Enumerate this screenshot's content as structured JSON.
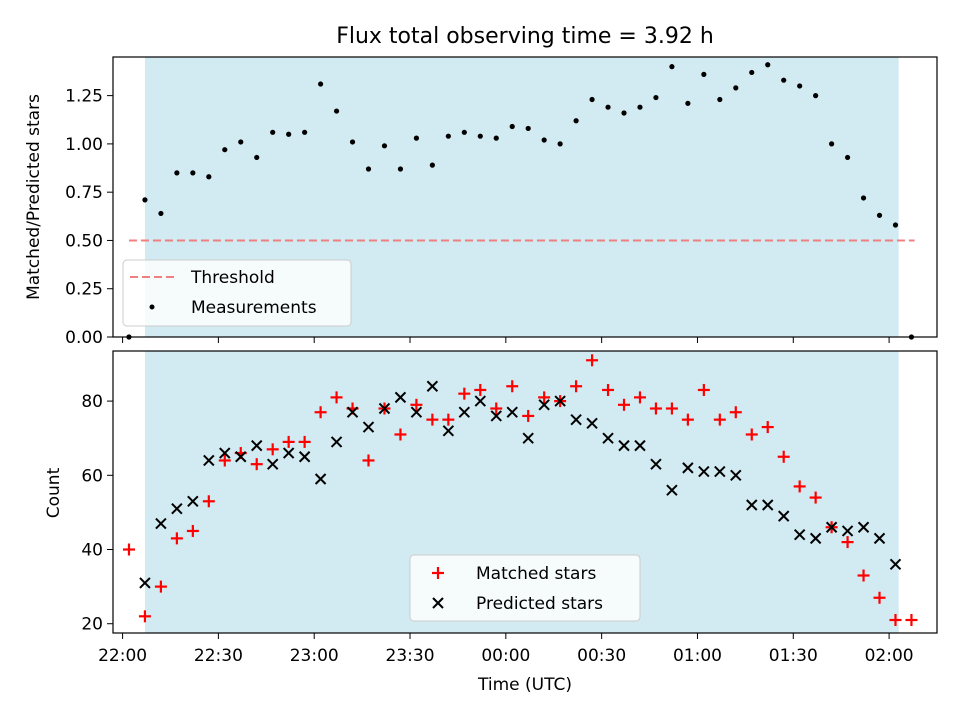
{
  "title": "Flux total observing time = 3.92 h",
  "colors": {
    "observing_band": "#add8e6",
    "threshold": "#f08080",
    "measurements": "#000000",
    "matched": "#ff0000",
    "predicted": "#000000"
  },
  "chart_data": [
    {
      "type": "scatter",
      "panel": "top",
      "ylabel": "Matched/Predicted stars",
      "ylim": [
        0,
        1.45
      ],
      "yticks": [
        "0.00",
        "0.25",
        "0.50",
        "0.75",
        "1.00",
        "1.25"
      ],
      "xlim": [
        "21:57",
        "02:15"
      ],
      "observing_window": [
        "22:07",
        "02:03"
      ],
      "threshold": {
        "label": "Threshold",
        "value": 0.5,
        "x_range": [
          "22:02",
          "02:08"
        ],
        "style": "dashed"
      },
      "legend": {
        "position": "lower-left",
        "entries": [
          "Threshold",
          "Measurements"
        ]
      },
      "series": [
        {
          "name": "Measurements",
          "marker": "dot",
          "x": [
            "22:02",
            "22:07",
            "22:12",
            "22:17",
            "22:22",
            "22:27",
            "22:32",
            "22:37",
            "22:42",
            "22:47",
            "22:52",
            "22:57",
            "23:02",
            "23:07",
            "23:12",
            "23:17",
            "23:22",
            "23:27",
            "23:32",
            "23:37",
            "23:42",
            "23:47",
            "23:52",
            "23:57",
            "00:02",
            "00:07",
            "00:12",
            "00:17",
            "00:22",
            "00:27",
            "00:32",
            "00:37",
            "00:42",
            "00:47",
            "00:52",
            "00:57",
            "01:02",
            "01:07",
            "01:12",
            "01:17",
            "01:22",
            "01:27",
            "01:32",
            "01:37",
            "01:42",
            "01:47",
            "01:52",
            "01:57",
            "02:02",
            "02:07"
          ],
          "y": [
            0.0,
            0.71,
            0.64,
            0.85,
            0.85,
            0.83,
            0.97,
            1.01,
            0.93,
            1.06,
            1.05,
            1.06,
            1.31,
            1.17,
            1.01,
            0.87,
            0.99,
            0.87,
            1.03,
            0.89,
            1.04,
            1.06,
            1.04,
            1.03,
            1.09,
            1.08,
            1.02,
            1.0,
            1.12,
            1.23,
            1.19,
            1.16,
            1.19,
            1.24,
            1.4,
            1.21,
            1.36,
            1.23,
            1.29,
            1.37,
            1.41,
            1.33,
            1.3,
            1.25,
            1.0,
            0.93,
            0.72,
            0.63,
            0.58,
            0.0
          ]
        }
      ]
    },
    {
      "type": "scatter",
      "panel": "bottom",
      "xlabel": "Time (UTC)",
      "ylabel": "Count",
      "ylim": [
        17.5,
        93.5
      ],
      "yticks": [
        "20",
        "40",
        "60",
        "80"
      ],
      "xlim": [
        "21:57",
        "02:15"
      ],
      "xticks": [
        "22:00",
        "22:30",
        "23:00",
        "23:30",
        "00:00",
        "00:30",
        "01:00",
        "01:30",
        "02:00"
      ],
      "observing_window": [
        "22:07",
        "02:03"
      ],
      "legend": {
        "position": "lower-center",
        "entries": [
          "Matched stars",
          "Predicted stars"
        ]
      },
      "series": [
        {
          "name": "Matched stars",
          "marker": "plus",
          "x": [
            "22:02",
            "22:07",
            "22:12",
            "22:17",
            "22:22",
            "22:27",
            "22:32",
            "22:37",
            "22:42",
            "22:47",
            "22:52",
            "22:57",
            "23:02",
            "23:07",
            "23:12",
            "23:17",
            "23:22",
            "23:27",
            "23:32",
            "23:37",
            "23:42",
            "23:47",
            "23:52",
            "23:57",
            "00:02",
            "00:07",
            "00:12",
            "00:17",
            "00:22",
            "00:27",
            "00:32",
            "00:37",
            "00:42",
            "00:47",
            "00:52",
            "00:57",
            "01:02",
            "01:07",
            "01:12",
            "01:17",
            "01:22",
            "01:27",
            "01:32",
            "01:37",
            "01:42",
            "01:47",
            "01:52",
            "01:57",
            "02:02",
            "02:07"
          ],
          "y": [
            40,
            22,
            30,
            43,
            45,
            53,
            64,
            66,
            63,
            67,
            69,
            69,
            77,
            81,
            78,
            64,
            78,
            71,
            79,
            75,
            75,
            82,
            83,
            78,
            84,
            76,
            81,
            80,
            84,
            91,
            83,
            79,
            81,
            78,
            78,
            75,
            83,
            75,
            77,
            71,
            73,
            65,
            57,
            54,
            46,
            42,
            33,
            27,
            21,
            21
          ]
        },
        {
          "name": "Predicted stars",
          "marker": "x",
          "x": [
            "22:07",
            "22:12",
            "22:17",
            "22:22",
            "22:27",
            "22:32",
            "22:37",
            "22:42",
            "22:47",
            "22:52",
            "22:57",
            "23:02",
            "23:07",
            "23:12",
            "23:17",
            "23:22",
            "23:27",
            "23:32",
            "23:37",
            "23:42",
            "23:47",
            "23:52",
            "23:57",
            "00:02",
            "00:07",
            "00:12",
            "00:17",
            "00:22",
            "00:27",
            "00:32",
            "00:37",
            "00:42",
            "00:47",
            "00:52",
            "00:57",
            "01:02",
            "01:07",
            "01:12",
            "01:17",
            "01:22",
            "01:27",
            "01:32",
            "01:37",
            "01:42",
            "01:47",
            "01:52",
            "01:57",
            "02:02"
          ],
          "y": [
            31,
            47,
            51,
            53,
            64,
            66,
            65,
            68,
            63,
            66,
            65,
            59,
            69,
            77,
            73,
            78,
            81,
            77,
            84,
            72,
            77,
            80,
            76,
            77,
            70,
            79,
            80,
            75,
            74,
            70,
            68,
            68,
            63,
            56,
            62,
            61,
            61,
            60,
            52,
            52,
            49,
            44,
            43,
            46,
            45,
            46,
            43,
            36
          ]
        }
      ]
    }
  ]
}
